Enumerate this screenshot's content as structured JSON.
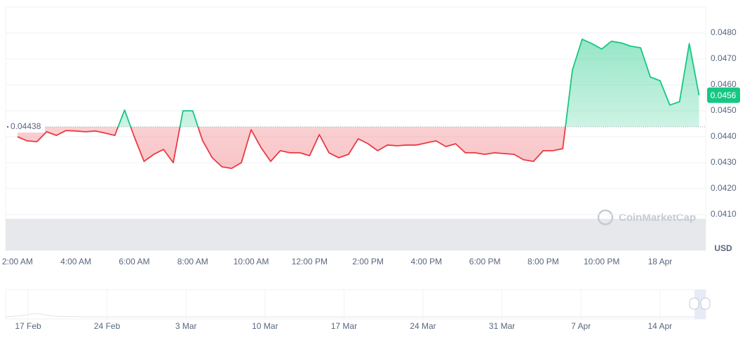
{
  "chart_data": {
    "type": "line",
    "categories": [
      null,
      "2:00 AM",
      null,
      null,
      null,
      null,
      null,
      "4:00 AM",
      null,
      null,
      null,
      null,
      null,
      "6:00 AM",
      null,
      null,
      null,
      null,
      null,
      "8:00 AM",
      null,
      null,
      null,
      null,
      null,
      "10:00 AM",
      null,
      null,
      null,
      null,
      null,
      "12:00 PM",
      null,
      null,
      null,
      null,
      null,
      "2:00 PM",
      null,
      null,
      null,
      null,
      null,
      "4:00 PM",
      null,
      null,
      null,
      null,
      null,
      "6:00 PM",
      null,
      null,
      null,
      null,
      null,
      "8:00 PM",
      null,
      null,
      null,
      null,
      null,
      "10:00 PM",
      null,
      null,
      null,
      null,
      null,
      "18 Apr",
      null,
      null,
      null,
      null
    ],
    "values": [
      null,
      0.044,
      0.04384,
      0.04381,
      0.04419,
      0.04405,
      0.04424,
      0.04422,
      0.04419,
      0.04422,
      0.04414,
      0.04405,
      0.04503,
      0.044,
      0.04305,
      0.04332,
      0.04351,
      0.043,
      0.045,
      0.045,
      0.04386,
      0.04319,
      0.04284,
      0.04278,
      0.043,
      0.04427,
      0.04359,
      0.04305,
      0.04346,
      0.04338,
      0.04338,
      0.04327,
      0.04408,
      0.04338,
      0.04319,
      0.04332,
      0.04392,
      0.04373,
      0.04346,
      0.04368,
      0.04365,
      0.04368,
      0.04368,
      0.04376,
      0.04384,
      0.04362,
      0.04373,
      0.04338,
      0.04338,
      0.04332,
      0.04338,
      0.04335,
      0.04332,
      0.04311,
      0.04305,
      0.04346,
      0.04346,
      0.04354,
      0.04657,
      0.04776,
      0.04759,
      0.04738,
      0.04768,
      0.04762,
      0.04749,
      0.04743,
      0.0463,
      0.04616,
      0.04522,
      0.04535,
      0.04759,
      0.0456
    ],
    "color_up": "#16c784",
    "color_down": "#ea3943",
    "baseline": 0.04438,
    "current_price": 0.0456,
    "ylim": [
      0.03962,
      0.049
    ],
    "yticks": [
      {
        "value": 0.041,
        "label": "0.0410"
      },
      {
        "value": 0.042,
        "label": "0.0420"
      },
      {
        "value": 0.043,
        "label": "0.0430"
      },
      {
        "value": 0.044,
        "label": "0.0440"
      },
      {
        "value": 0.045,
        "label": "0.0450"
      },
      {
        "value": 0.046,
        "label": "0.0460"
      },
      {
        "value": 0.047,
        "label": "0.0470"
      },
      {
        "value": 0.048,
        "label": "0.0480"
      }
    ],
    "grid": true,
    "unit": "USD",
    "watermark": "CoinMarketCap",
    "navigator_labels": [
      "17 Feb",
      "24 Feb",
      "3 Mar",
      "10 Mar",
      "17 Mar",
      "24 Mar",
      "31 Mar",
      "7 Apr",
      "14 Apr"
    ]
  }
}
